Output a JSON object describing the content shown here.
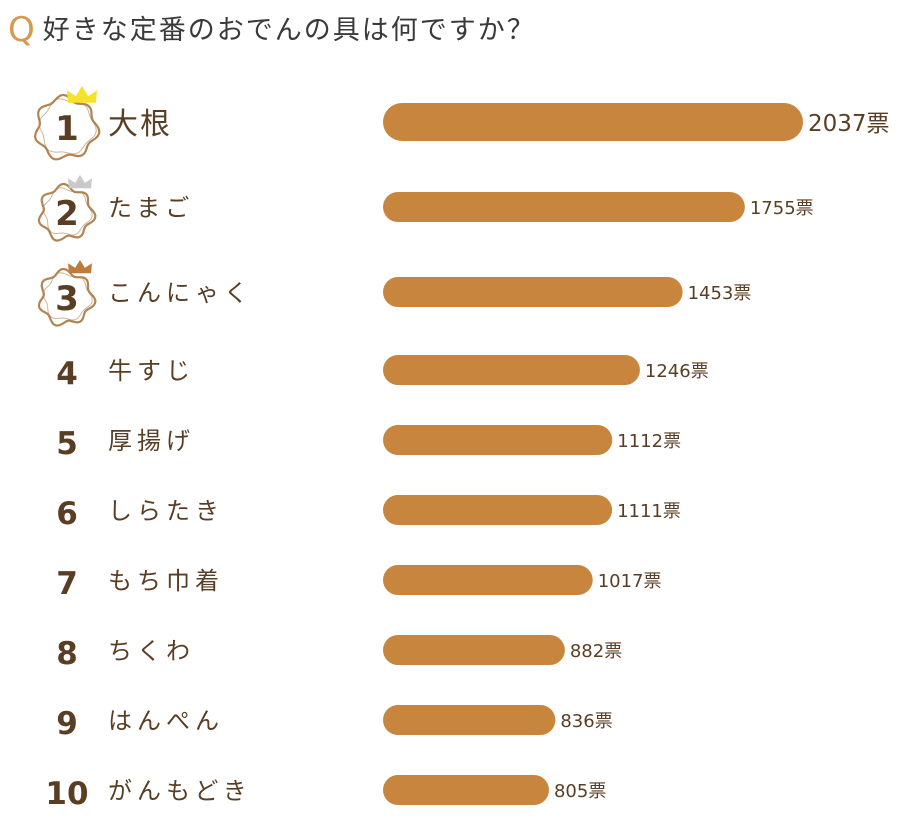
{
  "question": {
    "mark": "Q",
    "text": "好きな定番のおでんの具は何ですか？"
  },
  "colors": {
    "bar": "#c8853e",
    "text": "#5a3e24",
    "badge_outline": "#b08453",
    "crown_gold": "#f5e22a",
    "crown_silver": "#c9c9c9",
    "crown_bronze": "#c07a3c"
  },
  "chart_data": {
    "type": "bar",
    "orientation": "horizontal",
    "unit": "票",
    "categories": [
      "大根",
      "たまご",
      "こんにゃく",
      "牛すじ",
      "厚揚げ",
      "しらたき",
      "もち巾着",
      "ちくわ",
      "はんぺん",
      "がんもどき"
    ],
    "ranks": [
      "1",
      "2",
      "3",
      "4",
      "5",
      "6",
      "7",
      "8",
      "9",
      "10"
    ],
    "values": [
      2037,
      1755,
      1453,
      1246,
      1112,
      1111,
      1017,
      882,
      836,
      805
    ],
    "value_labels": [
      "2037票",
      "1755票",
      "1453票",
      "1246票",
      "1112票",
      "1111票",
      "1017票",
      "882票",
      "836票",
      "805票"
    ],
    "crowns": [
      "crown-gold-icon",
      "crown-silver-icon",
      "crown-bronze-icon"
    ]
  }
}
